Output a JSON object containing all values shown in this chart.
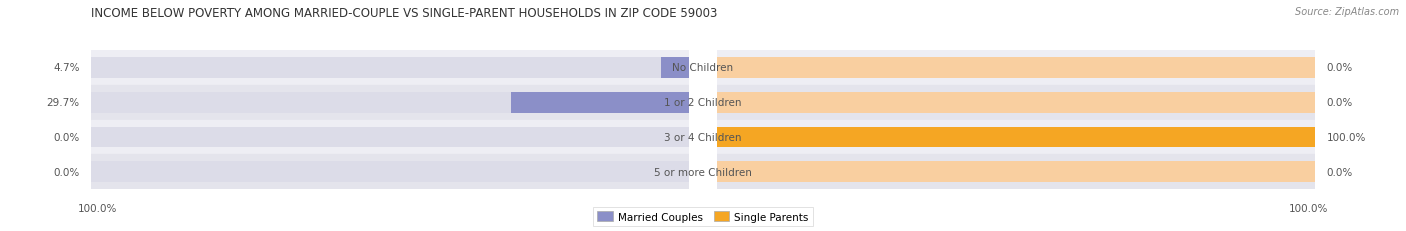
{
  "title": "INCOME BELOW POVERTY AMONG MARRIED-COUPLE VS SINGLE-PARENT HOUSEHOLDS IN ZIP CODE 59003",
  "source": "Source: ZipAtlas.com",
  "categories": [
    "No Children",
    "1 or 2 Children",
    "3 or 4 Children",
    "5 or more Children"
  ],
  "married_values": [
    4.7,
    29.7,
    0.0,
    0.0
  ],
  "single_values": [
    0.0,
    0.0,
    100.0,
    0.0
  ],
  "married_color": "#8b8fc8",
  "single_color": "#f5a623",
  "single_color_light": "#f9cfa0",
  "bar_bg_color_light": "#dcdce8",
  "bar_bg_color_orange_light": "#f9cfa0",
  "row_bg_even": "#eeeef4",
  "row_bg_odd": "#e4e4ec",
  "title_color": "#333333",
  "value_color": "#555555",
  "label_color": "#555555",
  "source_color": "#888888",
  "legend_labels": [
    "Married Couples",
    "Single Parents"
  ],
  "x_max": 100.0,
  "title_fontsize": 8.5,
  "source_fontsize": 7.0,
  "label_fontsize": 7.5,
  "value_fontsize": 7.5,
  "legend_fontsize": 7.5,
  "axis_label_fontsize": 7.5,
  "bar_height": 0.6,
  "background_color": "#ffffff",
  "axis_end_labels": [
    "100.0%",
    "100.0%"
  ]
}
